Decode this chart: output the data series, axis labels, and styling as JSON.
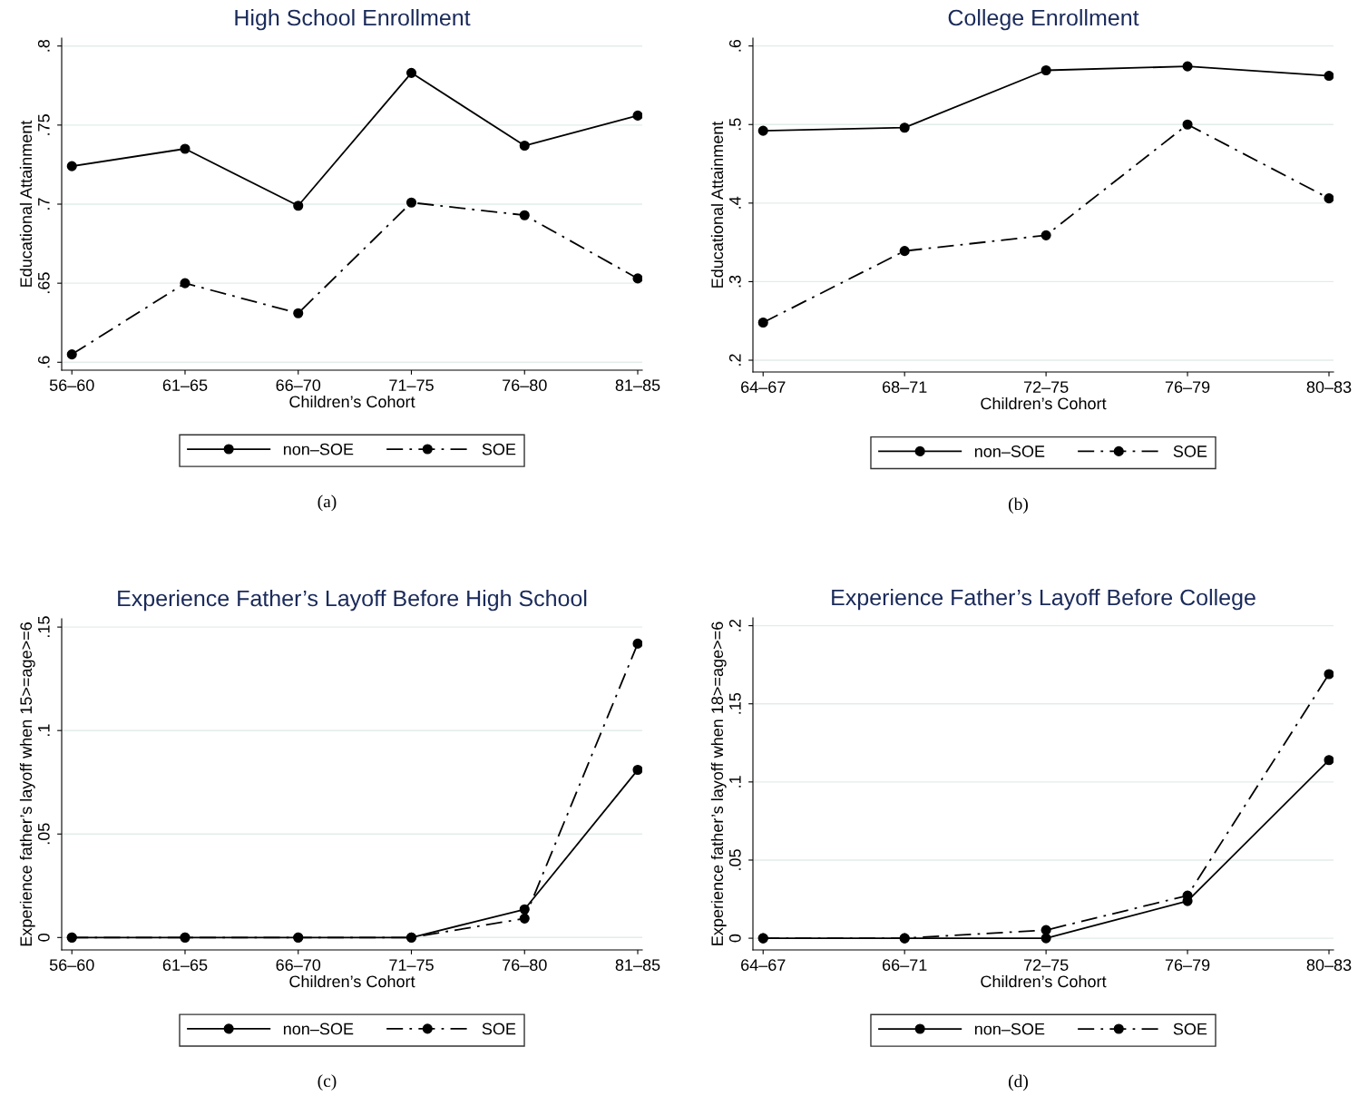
{
  "chart_data": [
    {
      "type": "line",
      "title": "High School Enrollment",
      "xlabel": "Children’s Cohort",
      "ylabel": "Educational Attainment",
      "annotations": [
        "(a)"
      ],
      "categories": [
        "56–60",
        "61–65",
        "66–70",
        "71–75",
        "76–80",
        "81–85"
      ],
      "series": [
        {
          "name": "non–SOE",
          "color": "#000000",
          "line_style": "solid",
          "values": [
            0.724,
            0.735,
            0.699,
            0.783,
            0.737,
            0.756
          ]
        },
        {
          "name": "SOE",
          "color": "#000000",
          "line_style": "dashdot",
          "values": [
            0.605,
            0.65,
            0.631,
            0.701,
            0.693,
            0.653
          ]
        }
      ],
      "ylim": [
        0.595,
        0.805
      ],
      "yticks": [
        {
          "value": 0.6,
          "label": ".6"
        },
        {
          "value": 0.65,
          "label": ".65"
        },
        {
          "value": 0.7,
          "label": ".7"
        },
        {
          "value": 0.75,
          "label": ".75"
        },
        {
          "value": 0.8,
          "label": ".8"
        }
      ],
      "grid": "y",
      "legend": "bottom",
      "marker": "circle"
    },
    {
      "type": "line",
      "title": "College Enrollment",
      "xlabel": "Children’s Cohort",
      "ylabel": "Educational Attainment",
      "annotations": [
        "(b)"
      ],
      "categories": [
        "64–67",
        "68–71",
        "72–75",
        "76–79",
        "80–83"
      ],
      "series": [
        {
          "name": "non–SOE",
          "color": "#000000",
          "line_style": "solid",
          "values": [
            0.492,
            0.496,
            0.569,
            0.574,
            0.562
          ]
        },
        {
          "name": "SOE",
          "color": "#000000",
          "line_style": "dashdot",
          "values": [
            0.248,
            0.339,
            0.359,
            0.5,
            0.406
          ]
        }
      ],
      "ylim": [
        0.185,
        0.61
      ],
      "yticks": [
        {
          "value": 0.2,
          "label": ".2"
        },
        {
          "value": 0.3,
          "label": ".3"
        },
        {
          "value": 0.4,
          "label": ".4"
        },
        {
          "value": 0.5,
          "label": ".5"
        },
        {
          "value": 0.6,
          "label": ".6"
        }
      ],
      "grid": "y",
      "legend": "bottom",
      "marker": "circle"
    },
    {
      "type": "line",
      "title": "Experience Father’s Layoff Before High School",
      "xlabel": "Children’s Cohort",
      "ylabel": "Experience father’s layoff when 15>=age>=6",
      "annotations": [
        "(c)"
      ],
      "categories": [
        "56–60",
        "61–65",
        "66–70",
        "71–75",
        "76–80",
        "81–85"
      ],
      "series": [
        {
          "name": "non–SOE",
          "color": "#000000",
          "line_style": "solid",
          "values": [
            0,
            0,
            0,
            0,
            0.0136,
            0.081
          ]
        },
        {
          "name": "SOE",
          "color": "#000000",
          "line_style": "dashdot",
          "values": [
            0,
            0,
            0,
            0,
            0.0092,
            0.142
          ]
        }
      ],
      "ylim": [
        -0.006,
        0.154
      ],
      "yticks": [
        0,
        {
          "value": 0.05,
          "label": ".05"
        },
        {
          "value": 0.1,
          "label": ".1"
        },
        {
          "value": 0.15,
          "label": ".15"
        }
      ],
      "grid": "y",
      "legend": "bottom",
      "marker": "circle"
    },
    {
      "type": "line",
      "title": "Experience Father’s Layoff Before College",
      "xlabel": "Children’s Cohort",
      "ylabel": "Experience father’s layoff when 18>=age>=6",
      "annotations": [
        "(d)"
      ],
      "categories": [
        "64–67",
        "66–71",
        "72–75",
        "76–79",
        "80–83"
      ],
      "series": [
        {
          "name": "non–SOE",
          "color": "#000000",
          "line_style": "solid",
          "values": [
            0,
            0,
            0,
            0.0238,
            0.114
          ]
        },
        {
          "name": "SOE",
          "color": "#000000",
          "line_style": "dashdot",
          "values": [
            0,
            0,
            0.0052,
            0.0273,
            0.169
          ]
        }
      ],
      "ylim": [
        -0.0075,
        0.205
      ],
      "yticks": [
        0,
        {
          "value": 0.05,
          "label": ".05"
        },
        {
          "value": 0.1,
          "label": ".1"
        },
        {
          "value": 0.15,
          "label": ".15"
        },
        {
          "value": 0.2,
          "label": ".2"
        }
      ],
      "grid": "y",
      "legend": "bottom",
      "marker": "circle"
    }
  ]
}
